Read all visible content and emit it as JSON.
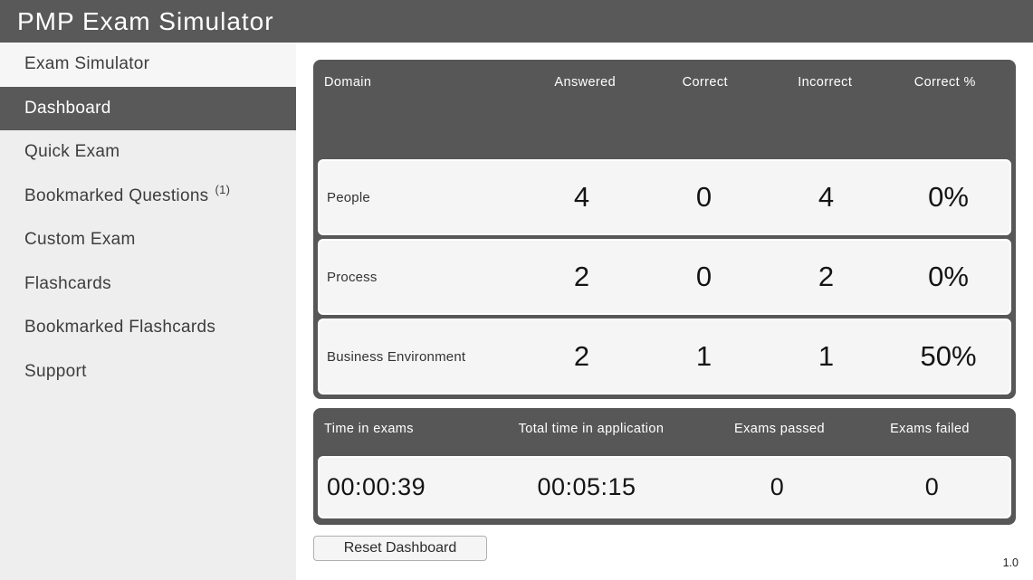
{
  "app": {
    "title": "PMP Exam Simulator",
    "version": "1.0"
  },
  "colors": {
    "header_bg": "#595959",
    "sidebar_bg": "#eeeeee",
    "selected_item_bg": "#595959",
    "panel_bg": "#575757",
    "card_bg": "#f5f5f5"
  },
  "sidebar": {
    "items": [
      {
        "label": "Exam Simulator",
        "selected": false
      },
      {
        "label": "Dashboard",
        "selected": true
      },
      {
        "label": "Quick Exam",
        "selected": false
      },
      {
        "label": "Bookmarked Questions",
        "badge": "(1)",
        "selected": false
      },
      {
        "label": "Custom Exam",
        "selected": false
      },
      {
        "label": "Flashcards",
        "selected": false
      },
      {
        "label": "Bookmarked Flashcards",
        "selected": false
      },
      {
        "label": "Support",
        "selected": false
      }
    ]
  },
  "domain_table": {
    "columns": {
      "domain": "Domain",
      "answered": "Answered",
      "correct": "Correct",
      "incorrect": "Incorrect",
      "correct_pct": "Correct %"
    },
    "rows": [
      {
        "domain": "People",
        "answered": "4",
        "correct": "0",
        "incorrect": "4",
        "correct_pct": "0%"
      },
      {
        "domain": "Process",
        "answered": "2",
        "correct": "0",
        "incorrect": "2",
        "correct_pct": "0%"
      },
      {
        "domain": "Business Environment",
        "answered": "2",
        "correct": "1",
        "incorrect": "1",
        "correct_pct": "50%"
      }
    ]
  },
  "stats_table": {
    "columns": {
      "time_in_exams": "Time in exams",
      "total_time": "Total time in application",
      "exams_passed": "Exams passed",
      "exams_failed": "Exams failed"
    },
    "values": {
      "time_in_exams": "00:00:39",
      "total_time": "00:05:15",
      "exams_passed": "0",
      "exams_failed": "0"
    }
  },
  "actions": {
    "reset_label": "Reset Dashboard"
  }
}
